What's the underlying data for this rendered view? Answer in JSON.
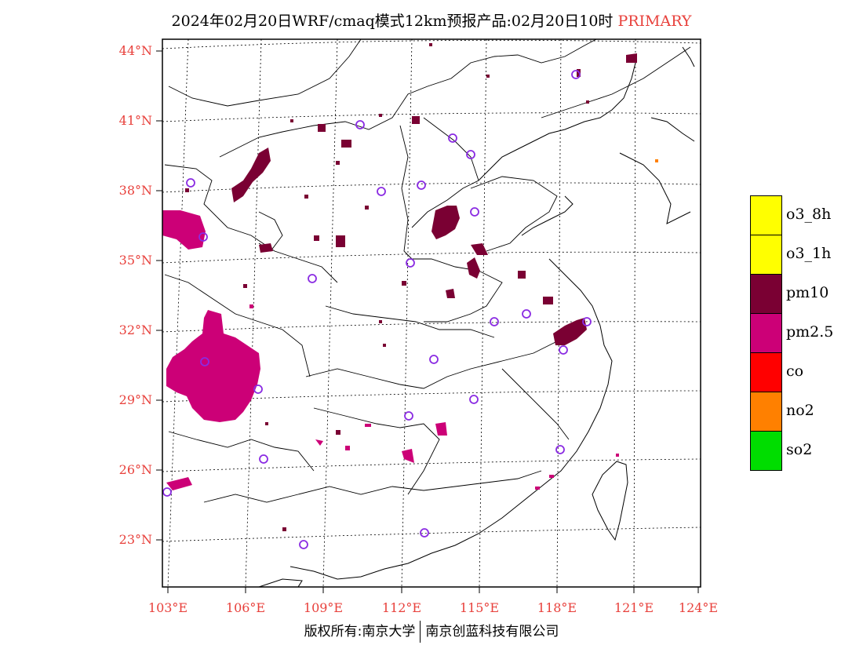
{
  "header": {
    "title": "2024年02月20日WRF/cmaq模式12km预报产品:02月20日10时",
    "tag": "PRIMARY"
  },
  "map": {
    "lat_ticks": [
      "44°N",
      "41°N",
      "38°N",
      "35°N",
      "32°N",
      "29°N",
      "26°N",
      "23°N"
    ],
    "lon_ticks": [
      "103°E",
      "106°E",
      "109°E",
      "112°E",
      "115°E",
      "118°E",
      "121°E",
      "124°E"
    ],
    "colors": {
      "pm10": "#7a0033",
      "pm25": "#cc0077",
      "no2": "#ff8000",
      "station": "#8a2be2",
      "border": "#000000",
      "label": "#e8413c"
    }
  },
  "legend": {
    "items": [
      {
        "label": "o3_8h",
        "color": "#ffff00"
      },
      {
        "label": "o3_1h",
        "color": "#ffff00"
      },
      {
        "label": "pm10",
        "color": "#7a0033"
      },
      {
        "label": "pm2.5",
        "color": "#cc0077"
      },
      {
        "label": "co",
        "color": "#ff0000"
      },
      {
        "label": "no2",
        "color": "#ff8000"
      },
      {
        "label": "so2",
        "color": "#00dd00"
      }
    ]
  },
  "footer": {
    "left": "版权所有:南京大学",
    "right": "南京创蓝科技有限公司"
  }
}
